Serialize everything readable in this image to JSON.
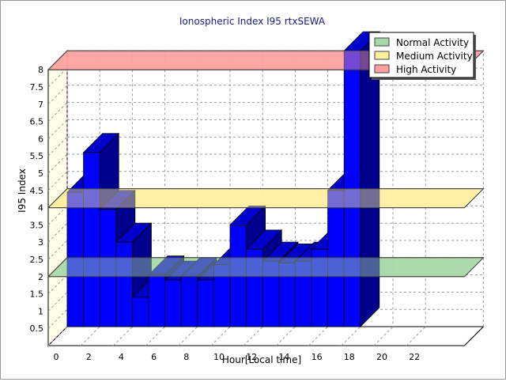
{
  "chart_data": {
    "type": "bar",
    "title": "Ionospheric Index I95 rtxSEWA",
    "xlabel": "Hour[Local time]",
    "ylabel": "I95 Index",
    "x_ticks": [
      "0",
      "2",
      "4",
      "6",
      "8",
      "10",
      "12",
      "14",
      "16",
      "18",
      "20",
      "22"
    ],
    "y_ticks": [
      "0.5",
      "1",
      "1.5",
      "2",
      "2.5",
      "3",
      "3.5",
      "4",
      "4.5",
      "5",
      "5.5",
      "6",
      "6.5",
      "7",
      "7.5",
      "8"
    ],
    "xlim": [
      0,
      24
    ],
    "ylim": [
      0,
      8
    ],
    "grid": true,
    "legend_position": "top-right",
    "hours": [
      0,
      1,
      2,
      3,
      4,
      5,
      6,
      7,
      8,
      9,
      10,
      11,
      12,
      13,
      14,
      15,
      16,
      17
    ],
    "values": [
      3.9,
      5.05,
      3.4,
      2.45,
      0.85,
      1.5,
      1.35,
      1.45,
      1.35,
      1.8,
      2.95,
      2.25,
      1.9,
      1.85,
      1.9,
      2.25,
      3.95,
      8.0
    ],
    "bar_color": "#0000ff",
    "bands": [
      {
        "name": "Normal Activity",
        "y_from": 2.0,
        "y_to": 2.0,
        "color": "#a8d8a8"
      },
      {
        "name": "Medium Activity",
        "y_from": 4.0,
        "y_to": 4.0,
        "color": "#fff0a0"
      },
      {
        "name": "High Activity",
        "y_from": 8.0,
        "y_to": 8.0,
        "color": "#ffa0a0"
      }
    ]
  }
}
